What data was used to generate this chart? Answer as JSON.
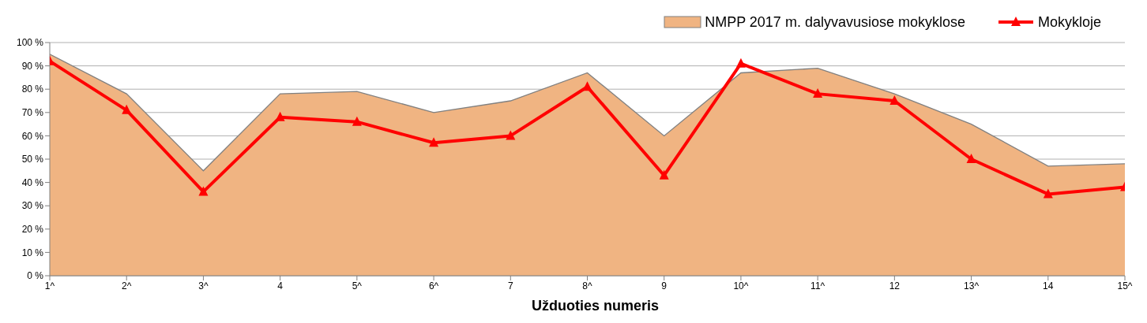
{
  "chart_data": {
    "type": "area",
    "xlabel": "Užduoties numeris",
    "categories": [
      "1^",
      "2^",
      "3^",
      "4",
      "5^",
      "6^",
      "7",
      "8^",
      "9",
      "10^",
      "11^",
      "12",
      "13^",
      "14",
      "15^"
    ],
    "series": [
      {
        "name": "NMPP 2017 m. dalyvavusiose mokyklose",
        "color": "#f0b482",
        "values": [
          95,
          78,
          45,
          78,
          79,
          70,
          75,
          87,
          60,
          87,
          89,
          78,
          65,
          47,
          48
        ]
      },
      {
        "name": "Mokykloje",
        "type": "line",
        "color": "#ff0000",
        "marker": "triangle",
        "values": [
          92,
          71,
          36,
          68,
          66,
          57,
          60,
          81,
          43,
          91,
          78,
          75,
          50,
          35,
          38
        ]
      }
    ],
    "ylim": [
      0,
      100
    ],
    "yticks": [
      {
        "value": 0,
        "label": "0 %"
      },
      {
        "value": 10,
        "label": "10 %"
      },
      {
        "value": 20,
        "label": "20 %"
      },
      {
        "value": 30,
        "label": "30 %"
      },
      {
        "value": 40,
        "label": "40 %"
      },
      {
        "value": 50,
        "label": "50 %"
      },
      {
        "value": 60,
        "label": "60 %"
      },
      {
        "value": 70,
        "label": "70 %"
      },
      {
        "value": 80,
        "label": "80 %"
      },
      {
        "value": 90,
        "label": "90 %"
      },
      {
        "value": 100,
        "label": "100 %"
      }
    ],
    "grid": "y",
    "legend": "top right"
  }
}
